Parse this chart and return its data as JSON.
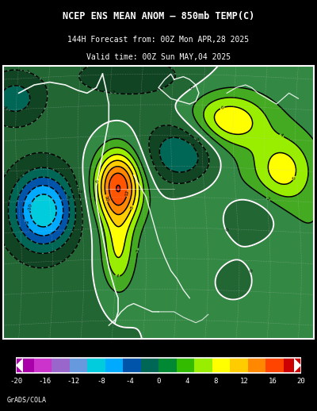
{
  "title": "NCEP ENS MEAN ANOM – 850mb TEMP(C)",
  "subtitle1": "144H Forecast from: 00Z Mon APR,28 2025",
  "subtitle2": "Valid time: 00Z Sun MAY,04 2025",
  "credit": "GrADS/COLA",
  "colorbar_labels": [
    "-20",
    "-16",
    "-12",
    "-8",
    "-4",
    "0",
    "4",
    "8",
    "12",
    "16",
    "20"
  ],
  "cb_colors": [
    "#aa00aa",
    "#cc33cc",
    "#9966cc",
    "#6699dd",
    "#00ccdd",
    "#00aaff",
    "#0055aa",
    "#006655",
    "#008833",
    "#33bb00",
    "#99ee00",
    "#ffff00",
    "#ffcc00",
    "#ff8800",
    "#ff4400",
    "#cc0000"
  ],
  "fill_levels": [
    -20,
    -18,
    -16,
    -14,
    -12,
    -10,
    -8,
    -6,
    -4,
    -2,
    0,
    2,
    4,
    6,
    8,
    10,
    12,
    14,
    16,
    18,
    20
  ],
  "fill_colors": [
    "#aa00aa",
    "#cc33cc",
    "#9966cc",
    "#6699dd",
    "#00ccdd",
    "#00aaff",
    "#0055aa",
    "#006655",
    "#114422",
    "#226633",
    "#338844",
    "#44aa22",
    "#99ee00",
    "#ffff00",
    "#ffcc00",
    "#ff8800",
    "#ff5500",
    "#ff2200",
    "#cc0000",
    "#990000"
  ],
  "bg_color": "#000000",
  "map_border_color": "#ffffff",
  "fig_width": 4.0,
  "fig_height": 5.18,
  "title_fontsize": 8.5,
  "sub_fontsize": 7.0,
  "credit_fontsize": 6.0
}
